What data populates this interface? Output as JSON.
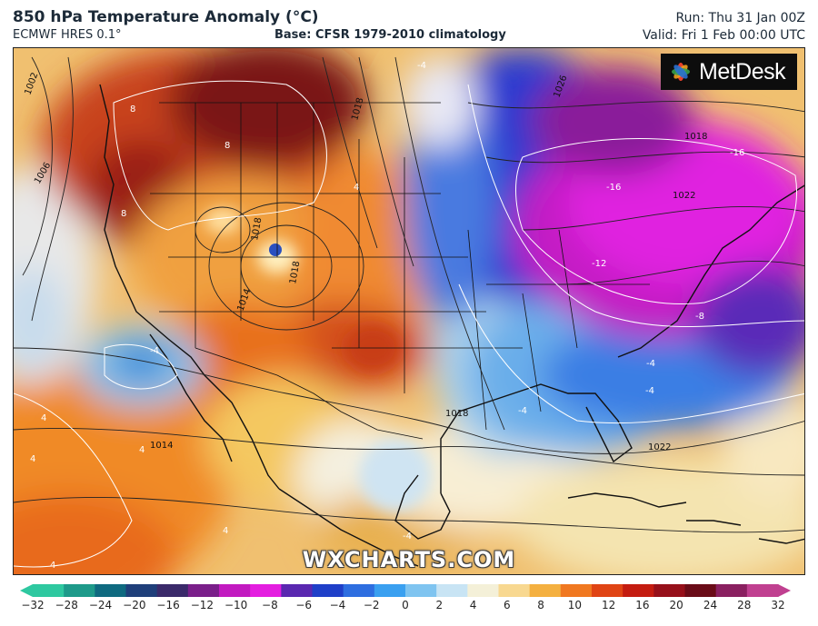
{
  "header": {
    "title": "850 hPa Temperature Anomaly (°C)",
    "model": "ECMWF HRES 0.1°",
    "base": "Base: CFSR 1979-2010 climatology",
    "run": "Run: Thu 31 Jan 00Z",
    "valid": "Valid: Fri 1 Feb 00:00 UTC"
  },
  "logo": {
    "text": "MetDesk"
  },
  "watermark": "WXCHARTS.COM",
  "map": {
    "isobar_labels": [
      "1002",
      "1006",
      "1018",
      "1018",
      "1018",
      "1014",
      "1014",
      "1018",
      "1022",
      "1026",
      "1018",
      "1022"
    ],
    "anomaly_labels": [
      "-4",
      "-16",
      "-16",
      "-12",
      "-8",
      "-4",
      "-4",
      "-4",
      "-4",
      "4",
      "4",
      "4",
      "4",
      "8",
      "8",
      "8",
      "4",
      "-4",
      "4"
    ]
  },
  "colorbar": {
    "ticks": [
      "−32",
      "−28",
      "−24",
      "−20",
      "−16",
      "−12",
      "−10",
      "−8",
      "−6",
      "−4",
      "−2",
      "0",
      "2",
      "4",
      "6",
      "8",
      "10",
      "12",
      "16",
      "20",
      "24",
      "28",
      "32"
    ],
    "colors": [
      "#2ec8a0",
      "#1e9a8a",
      "#0f6a80",
      "#1f3f7a",
      "#3a2a6a",
      "#7a1f8a",
      "#c21ac0",
      "#e41ee0",
      "#5a28b0",
      "#1f3fc8",
      "#2e6ee0",
      "#3aa0f0",
      "#7fc4f0",
      "#c8e4f4",
      "#f4f0d8",
      "#f8d890",
      "#f4b040",
      "#f07820",
      "#e04414",
      "#c41c10",
      "#96101a",
      "#6a0c18",
      "#8a2060",
      "#c04090"
    ]
  }
}
